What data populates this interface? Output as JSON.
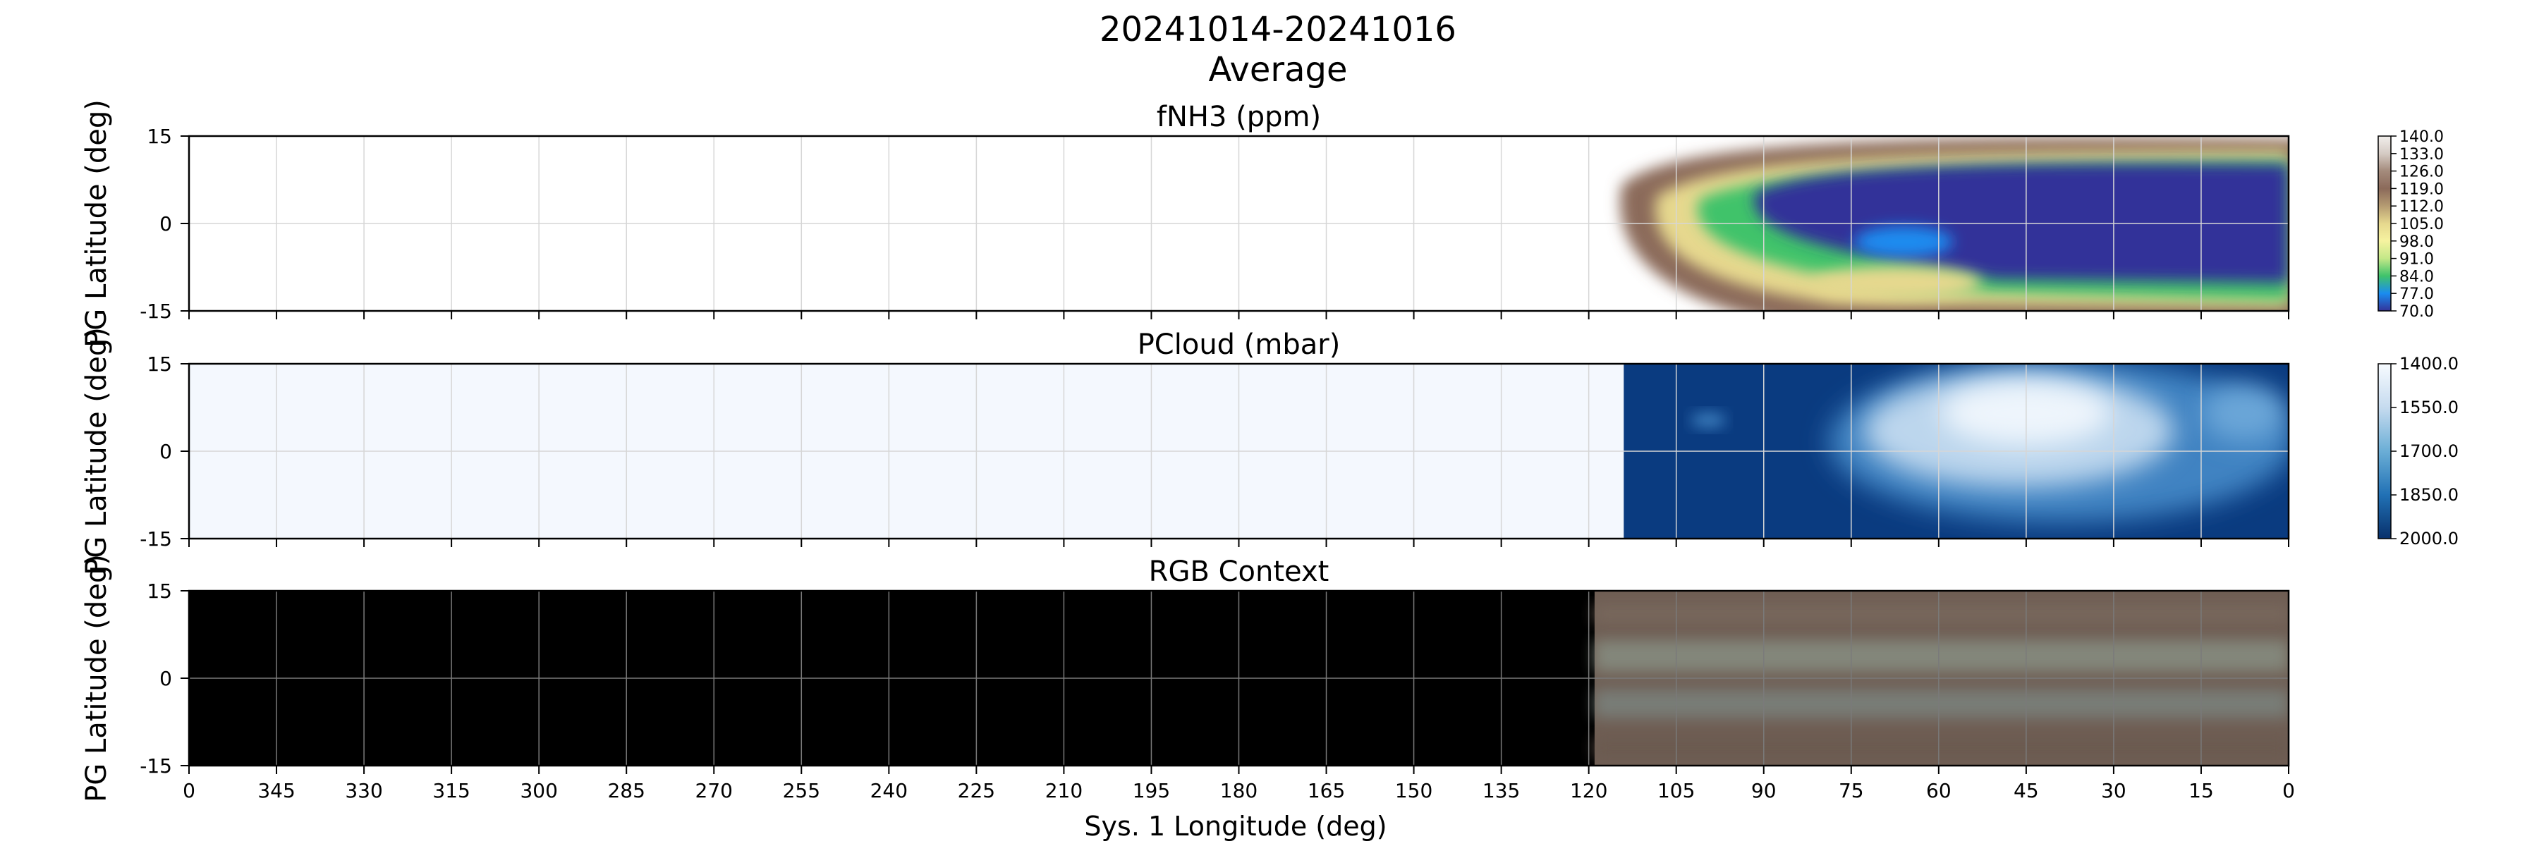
{
  "figure": {
    "title_line1": "20241014-20241016",
    "title_line2": "Average",
    "xlabel": "Sys. 1 Longitude (deg)"
  },
  "chart_data": [
    {
      "type": "heatmap",
      "title": "fNH3 (ppm)",
      "ylabel": "PG Latitude (deg)",
      "xlim": [
        360,
        0
      ],
      "ylim": [
        -15,
        15
      ],
      "xticks": [
        "0",
        "345",
        "330",
        "315",
        "300",
        "285",
        "270",
        "255",
        "240",
        "225",
        "210",
        "195",
        "180",
        "165",
        "150",
        "135",
        "120",
        "105",
        "90",
        "75",
        "60",
        "45",
        "30",
        "15",
        "0"
      ],
      "yticks": [
        "15",
        "0",
        "-15"
      ],
      "grid": true,
      "data_extent_lon": [
        118,
        0
      ],
      "colormap": "terrain_r",
      "colorbar": {
        "range": [
          70,
          140
        ],
        "ticks": [
          "140.0",
          "133.0",
          "126.0",
          "119.0",
          "112.0",
          "105.0",
          "98.0",
          "91.0",
          "84.0",
          "77.0",
          "70.0"
        ],
        "colors": [
          "#f2efec",
          "#d5cbc4",
          "#a48b7c",
          "#8b6a5a",
          "#b59c72",
          "#e6d88e",
          "#f6f3a0",
          "#c4e888",
          "#3fc36b",
          "#1a8cf0",
          "#333399"
        ]
      }
    },
    {
      "type": "heatmap",
      "title": "PCloud (mbar)",
      "ylabel": "PG Latitude (deg)",
      "xlim": [
        360,
        0
      ],
      "ylim": [
        -15,
        15
      ],
      "xticks": [
        "0",
        "345",
        "330",
        "315",
        "300",
        "285",
        "270",
        "255",
        "240",
        "225",
        "210",
        "195",
        "180",
        "165",
        "150",
        "135",
        "120",
        "105",
        "90",
        "75",
        "60",
        "45",
        "30",
        "15",
        "0"
      ],
      "yticks": [
        "15",
        "0",
        "-15"
      ],
      "grid": true,
      "data_extent_lon": [
        114,
        0
      ],
      "colormap": "Blues_r",
      "colorbar": {
        "range": [
          2000,
          1400
        ],
        "ticks": [
          "1400.0",
          "1550.0",
          "1700.0",
          "1850.0",
          "2000.0"
        ],
        "colors": [
          "#f7fbff",
          "#c6dbef",
          "#6baed6",
          "#2171b5",
          "#08306b"
        ]
      }
    },
    {
      "type": "heatmap",
      "title": "RGB Context",
      "ylabel": "PG Latitude (deg)",
      "xlim": [
        360,
        0
      ],
      "ylim": [
        -15,
        15
      ],
      "xticks": [
        "0",
        "345",
        "330",
        "315",
        "300",
        "285",
        "270",
        "255",
        "240",
        "225",
        "210",
        "195",
        "180",
        "165",
        "150",
        "135",
        "120",
        "105",
        "90",
        "75",
        "60",
        "45",
        "30",
        "15",
        "0"
      ],
      "yticks": [
        "15",
        "0",
        "-15"
      ],
      "grid": true,
      "data_extent_lon": [
        119,
        0
      ]
    }
  ]
}
